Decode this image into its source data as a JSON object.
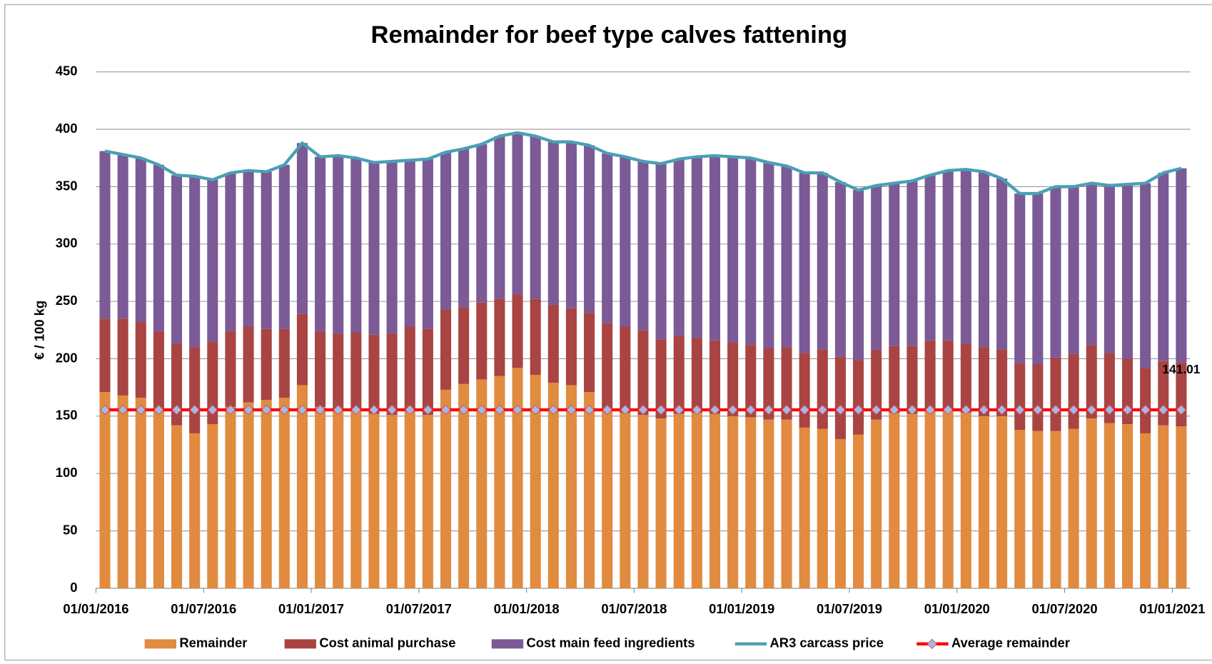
{
  "chart_data": {
    "type": "bar",
    "stacked": true,
    "title": "Remainder for beef type calves fattening",
    "ylabel": "€ / 100 kg",
    "categories": [
      "01/01/2016",
      null,
      null,
      null,
      null,
      null,
      "01/07/2016",
      null,
      null,
      null,
      null,
      null,
      "01/01/2017",
      null,
      null,
      null,
      null,
      null,
      "01/07/2017",
      null,
      null,
      null,
      null,
      null,
      "01/01/2018",
      null,
      null,
      null,
      null,
      null,
      "01/07/2018",
      null,
      null,
      null,
      null,
      null,
      "01/01/2019",
      null,
      null,
      null,
      null,
      null,
      "01/07/2019",
      null,
      null,
      null,
      null,
      null,
      "01/01/2020",
      null,
      null,
      null,
      null,
      null,
      "01/07/2020",
      null,
      null,
      null,
      null,
      null,
      "01/01/2021"
    ],
    "ylim": [
      0,
      450
    ],
    "yticks": [
      0,
      50,
      100,
      150,
      200,
      250,
      300,
      350,
      400,
      450
    ],
    "grid": true,
    "legend": "bottom",
    "series": [
      {
        "name": "Remainder",
        "type": "bar",
        "color": "#e08b3f",
        "values": [
          171,
          168,
          166,
          157,
          142,
          135,
          143,
          158,
          162,
          164,
          166,
          177,
          158,
          155,
          156,
          152,
          151,
          156,
          151,
          173,
          178,
          182,
          185,
          192,
          186,
          179,
          177,
          171,
          155,
          153,
          151,
          148,
          152,
          153,
          152,
          150,
          149,
          147,
          147,
          140,
          139,
          130,
          134,
          147,
          153,
          152,
          155,
          155,
          153,
          150,
          150,
          138,
          137,
          137,
          139,
          148,
          144,
          143,
          135,
          142,
          141.01
        ]
      },
      {
        "name": "Cost animal purchase",
        "type": "bar",
        "color": "#a94442",
        "values": [
          64,
          67,
          66,
          67,
          71,
          75,
          72,
          66,
          66,
          62,
          60,
          62,
          66,
          67,
          67,
          69,
          71,
          72,
          75,
          70,
          67,
          67,
          67,
          64,
          66,
          68,
          67,
          69,
          76,
          75,
          74,
          69,
          68,
          65,
          64,
          64,
          63,
          62,
          63,
          65,
          69,
          72,
          65,
          61,
          58,
          59,
          61,
          61,
          60,
          60,
          58,
          58,
          58,
          64,
          65,
          64,
          61,
          57,
          57,
          56,
          55.99
        ]
      },
      {
        "name": "Cost main feed ingredients",
        "type": "bar",
        "color": "#7b5a96",
        "values": [
          146,
          143,
          143,
          145,
          147,
          149,
          141,
          138,
          136,
          137,
          143,
          149,
          152,
          155,
          152,
          150,
          150,
          145,
          148,
          137,
          138,
          138,
          142,
          141,
          142,
          142,
          145,
          146,
          148,
          148,
          147,
          153,
          154,
          158,
          161,
          162,
          163,
          162,
          158,
          157,
          154,
          152,
          148,
          143,
          142,
          144,
          144,
          148,
          152,
          153,
          149,
          148,
          149,
          149,
          146,
          141,
          146,
          152,
          161,
          164,
          169
        ]
      },
      {
        "name": "AR3 carcass price",
        "type": "line",
        "color": "#4aa0b5",
        "values": [
          381,
          378,
          375,
          369,
          360,
          359,
          356,
          362,
          364,
          363,
          369,
          388,
          376,
          377,
          375,
          371,
          372,
          373,
          374,
          380,
          383,
          387,
          394,
          397,
          394,
          389,
          389,
          386,
          379,
          376,
          372,
          370,
          374,
          376,
          377,
          376,
          375,
          371,
          368,
          362,
          362,
          354,
          347,
          351,
          353,
          355,
          360,
          364,
          365,
          363,
          357,
          344,
          344,
          350,
          350,
          353,
          351,
          352,
          353,
          362,
          366
        ]
      },
      {
        "name": "Average remainder",
        "type": "line",
        "markers": true,
        "color": "#ff0000",
        "marker_color": "#a9b8e0",
        "values": [
          155.5,
          155.5,
          155.5,
          155.5,
          155.5,
          155.5,
          155.5,
          155.5,
          155.5,
          155.5,
          155.5,
          155.5,
          155.5,
          155.5,
          155.5,
          155.5,
          155.5,
          155.5,
          155.5,
          155.5,
          155.5,
          155.5,
          155.5,
          155.5,
          155.5,
          155.5,
          155.5,
          155.5,
          155.5,
          155.5,
          155.5,
          155.5,
          155.5,
          155.5,
          155.5,
          155.5,
          155.5,
          155.5,
          155.5,
          155.5,
          155.5,
          155.5,
          155.5,
          155.5,
          155.5,
          155.5,
          155.5,
          155.5,
          155.5,
          155.5,
          155.5,
          155.5,
          155.5,
          155.5,
          155.5,
          155.5,
          155.5,
          155.5,
          155.5,
          155.5,
          155.5
        ]
      }
    ]
  }
}
